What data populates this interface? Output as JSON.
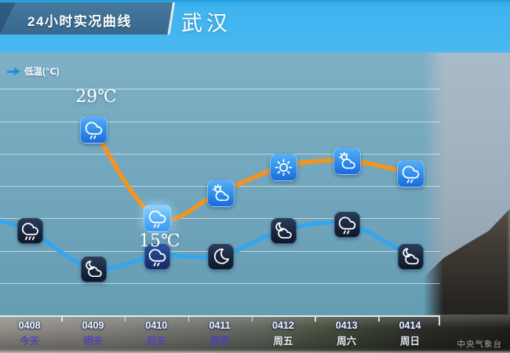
{
  "header": {
    "title": "24小时实况曲线",
    "city": "武汉"
  },
  "legend": {
    "label": "低温(℃)",
    "marker_color": "#1d8fe3"
  },
  "watermark": "中央气象台",
  "colors": {
    "high_line": "#f5931f",
    "low_line": "#38a5ea",
    "dayname_purple": "#4c44b5",
    "panel_teal": "#72a6be",
    "header_blue": "#45b6f0",
    "banner_blue": "#3e6f94"
  },
  "chart_data": {
    "type": "line",
    "title": "24小时实况曲线",
    "location": "武汉",
    "categories": [
      {
        "date": "0408",
        "day": "今天",
        "on_dark": false
      },
      {
        "date": "0409",
        "day": "明天",
        "on_dark": false
      },
      {
        "date": "0410",
        "day": "后天",
        "on_dark": false
      },
      {
        "date": "0411",
        "day": "周四",
        "on_dark": false
      },
      {
        "date": "0412",
        "day": "周五",
        "on_dark": true
      },
      {
        "date": "0413",
        "day": "周六",
        "on_dark": true
      },
      {
        "date": "0414",
        "day": "周日",
        "on_dark": true
      }
    ],
    "series": [
      {
        "key": "day-high",
        "legend_shown": false,
        "color": "#f5931f",
        "values": [
          null,
          29,
          15,
          19,
          23,
          24,
          22
        ],
        "point_labels": [
          null,
          "29℃",
          "15℃",
          null,
          null,
          null,
          null
        ],
        "label_pos": [
          null,
          "above",
          "below",
          null,
          null,
          null,
          null
        ],
        "icons": [
          null,
          "rain",
          "rain",
          "partly-cloudy-day",
          "sunny",
          "partly-cloudy-day",
          "rain"
        ],
        "highlight_index": 2
      },
      {
        "key": "night-low",
        "legend_shown": true,
        "legend_label": "低温(℃)",
        "color": "#38a5ea",
        "values": [
          13,
          7,
          9,
          9,
          13,
          14,
          9
        ],
        "point_labels": [
          null,
          null,
          null,
          null,
          null,
          null,
          null
        ],
        "label_pos": [
          null,
          null,
          null,
          null,
          null,
          null,
          null
        ],
        "icons": [
          "heavy-rain",
          "cloudy-night",
          "rain",
          "clear-night",
          "cloudy-night",
          "rain",
          "cloudy-night"
        ],
        "highlight_index": 2,
        "lead_edge": {
          "dx": -46,
          "temp": 14.7
        }
      }
    ],
    "grid": {
      "horizontal_lines": 7
    },
    "y_axis": {
      "labels_shown": false,
      "note": "only 29℃ and 15℃ are labeled on the chart; other values estimated from positions"
    },
    "legend_position": "top-left"
  }
}
